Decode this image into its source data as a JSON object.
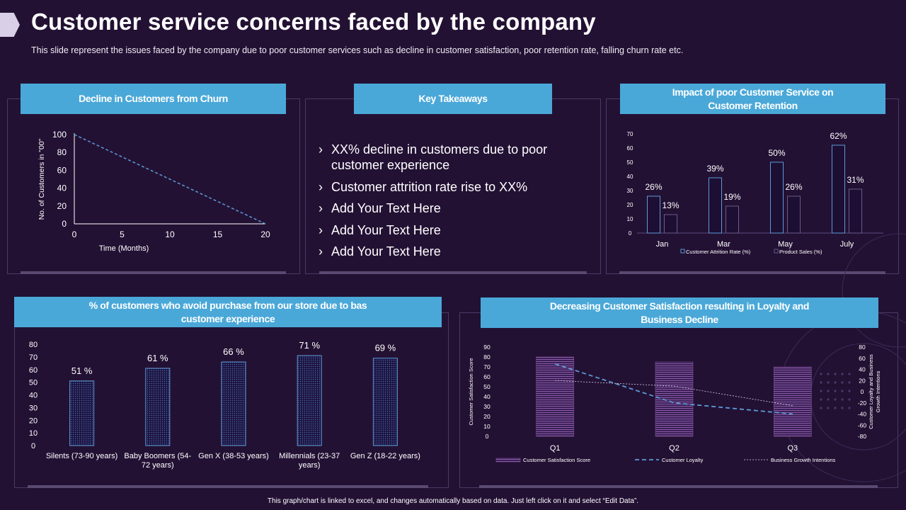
{
  "page": {
    "title": "Customer service concerns faced by the company",
    "subtitle": "This slide represent the issues faced by the company due to poor customer services such as decline in customer satisfaction, poor retention rate, falling churn rate etc.",
    "footer": "This graph/chart is linked to excel, and changes automatically based on data. Just left click on it and select “Edit Data”."
  },
  "takeaways": {
    "header": "Key Takeaways",
    "items": [
      "XX% decline in customers due to poor customer experience",
      "Customer attrition rate rise to XX%",
      "Add Your Text Here",
      "Add Your Text Here",
      "Add Your Text Here"
    ]
  },
  "colors": {
    "accent": "#4aa8d8",
    "background": "#231134",
    "bar_outline": "#5b9bd5",
    "bar_fill": "#1d0e33",
    "purple_bar": "#8a5aa6"
  },
  "chart_data": [
    {
      "id": "churn",
      "type": "line",
      "title": "Decline in Customers from Churn",
      "xlabel": "Time (Months)",
      "ylabel": "No. of Customers in \"00\"",
      "x": [
        0,
        20
      ],
      "y": [
        100,
        0
      ],
      "xticks": [
        "0",
        "5",
        "10",
        "15",
        "20"
      ],
      "yticks": [
        "0",
        "20",
        "40",
        "60",
        "80",
        "100"
      ],
      "xlim": [
        0,
        20
      ],
      "ylim": [
        0,
        100
      ]
    },
    {
      "id": "retention",
      "type": "bar",
      "title": "Impact of poor Customer Service on Customer Retention",
      "categories": [
        "Jan",
        "Mar",
        "May",
        "July"
      ],
      "series": [
        {
          "name": "Customer Attrition Rate (%)",
          "values": [
            26,
            39,
            50,
            62
          ],
          "labels": [
            "26%",
            "39%",
            "50%",
            "62%"
          ]
        },
        {
          "name": "Product Sales (%)",
          "values": [
            13,
            19,
            26,
            31
          ],
          "labels": [
            "13%",
            "19%",
            "26%",
            "31%"
          ]
        }
      ],
      "yticks": [
        "0",
        "10",
        "20",
        "30",
        "40",
        "50",
        "60",
        "70"
      ],
      "ylim": [
        0,
        70
      ]
    },
    {
      "id": "avoid",
      "type": "bar",
      "title": "% of customers who avoid purchase from our store due to bas customer experience",
      "categories": [
        [
          "Silents (73-90 years)"
        ],
        [
          "Baby Boomers (54-",
          "72 years)"
        ],
        [
          "Gen X (38-53 years)"
        ],
        [
          "Millennials (23-37",
          "years)"
        ],
        [
          "Gen Z (18-22 years)"
        ]
      ],
      "values": [
        51,
        61,
        66,
        71,
        69
      ],
      "labels": [
        "51 %",
        "61 %",
        "66 %",
        "71 %",
        "69 %"
      ],
      "yticks": [
        "0",
        "10",
        "20",
        "30",
        "40",
        "50",
        "60",
        "70",
        "80"
      ],
      "ylim": [
        0,
        80
      ]
    },
    {
      "id": "satisfaction",
      "type": "bar",
      "title": "Decreasing Customer Satisfaction resulting in Loyalty and Business Decline",
      "categories": [
        "Q1",
        "Q2",
        "Q3"
      ],
      "ylabel": "Customer Satisfaction Score",
      "y2label": "Customer Loyalty and Business Growth Intentions",
      "series": [
        {
          "name": "Customer Satisfaction Score",
          "kind": "bar",
          "axis": "left",
          "values": [
            80,
            75,
            70
          ]
        },
        {
          "name": "Customer Loyalty",
          "kind": "line-dashed",
          "axis": "right",
          "values": [
            50,
            -20,
            -40
          ]
        },
        {
          "name": "Business Growth Intentions",
          "kind": "line-dotted",
          "axis": "right",
          "values": [
            20,
            10,
            -25
          ]
        }
      ],
      "yticks": [
        "0",
        "10",
        "20",
        "30",
        "40",
        "50",
        "60",
        "70",
        "80",
        "90"
      ],
      "ylim": [
        0,
        90
      ],
      "y2ticks": [
        "-80",
        "-60",
        "-40",
        "-20",
        "0",
        "20",
        "40",
        "60",
        "80"
      ],
      "y2lim": [
        -80,
        80
      ]
    }
  ]
}
